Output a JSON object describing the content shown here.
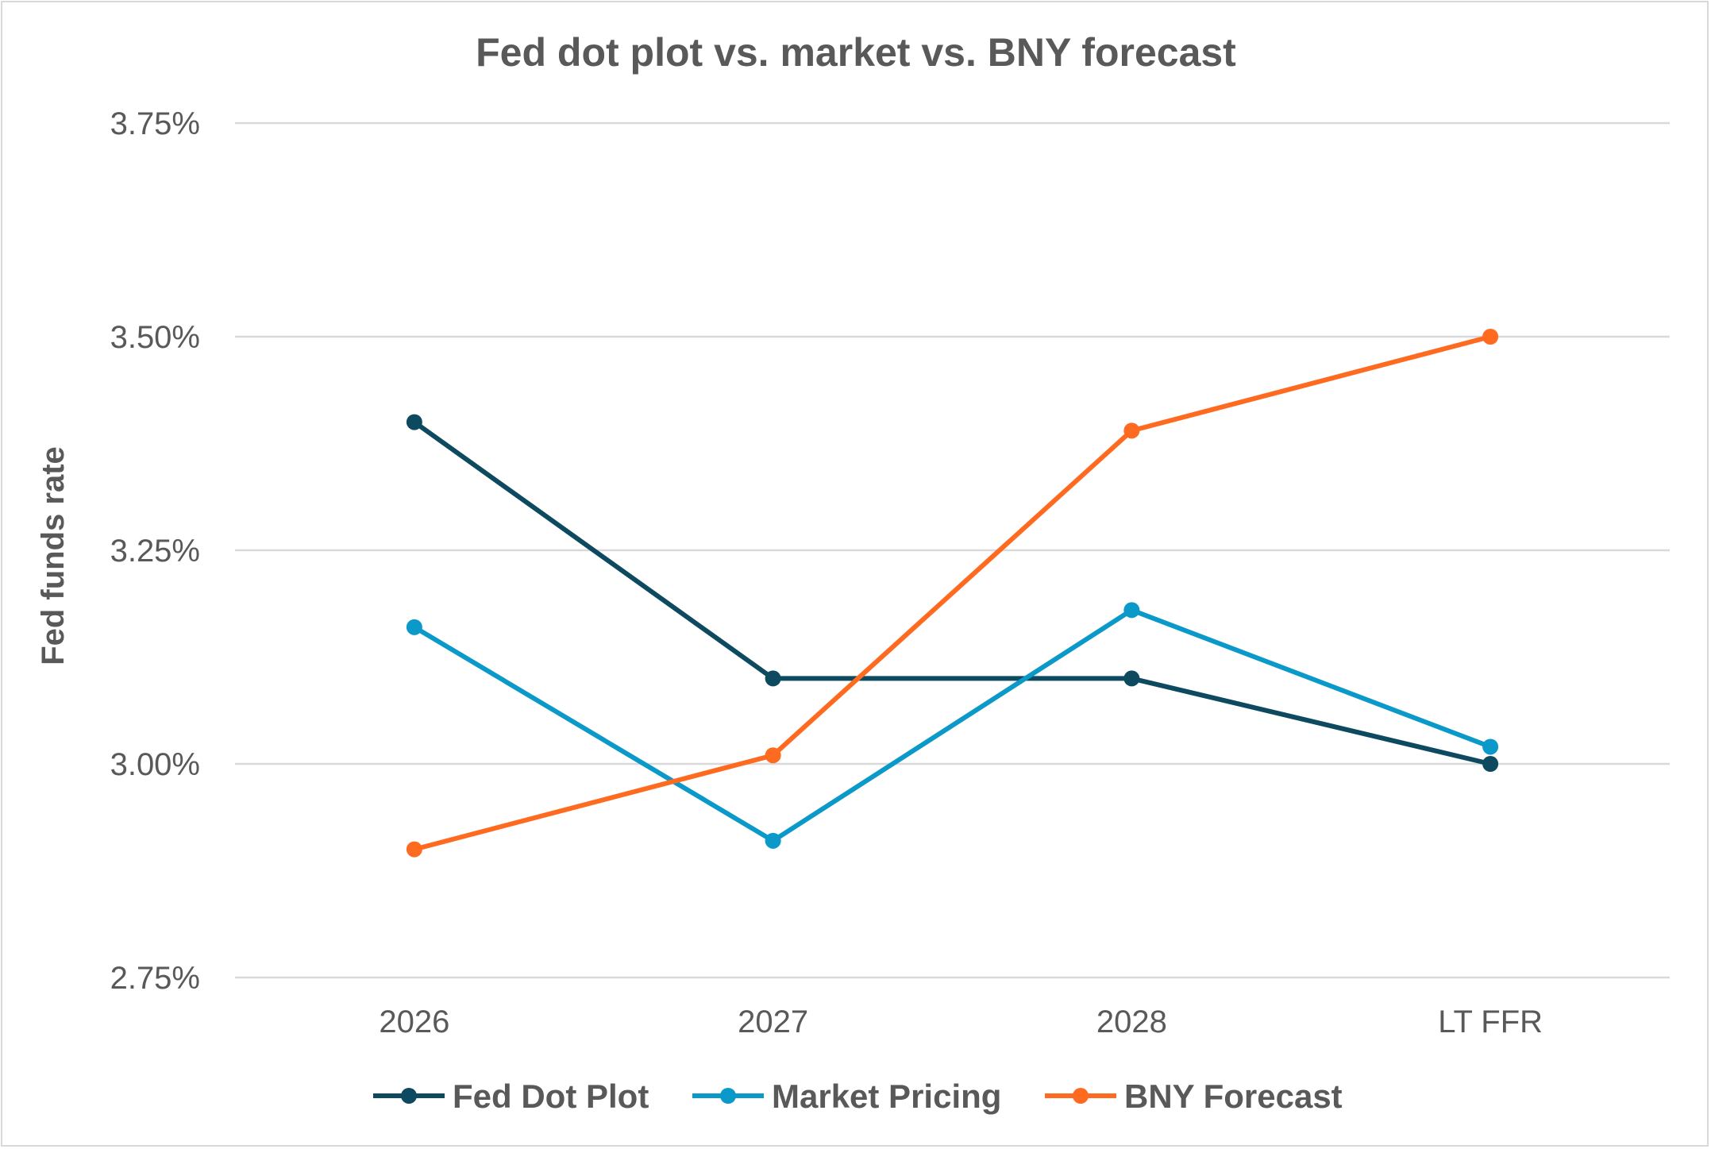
{
  "chart_data": {
    "type": "line",
    "title": "Fed dot plot vs. market vs. BNY forecast",
    "xlabel": "",
    "ylabel": "Fed funds rate",
    "categories": [
      "2026",
      "2027",
      "2028",
      "LT FFR"
    ],
    "ylim": [
      2.75,
      3.75
    ],
    "yticks": [
      2.75,
      3.0,
      3.25,
      3.5,
      3.75
    ],
    "ytick_labels": [
      "2.75%",
      "3.00%",
      "3.25%",
      "3.50%",
      "3.75%"
    ],
    "grid": true,
    "legend_position": "bottom",
    "series": [
      {
        "name": "Fed Dot Plot",
        "color": "#0D4A5F",
        "values": [
          3.4,
          3.1,
          3.1,
          3.0
        ]
      },
      {
        "name": "Market Pricing",
        "color": "#0A99C9",
        "values": [
          3.16,
          2.91,
          3.18,
          3.02
        ]
      },
      {
        "name": "BNY Forecast",
        "color": "#FF6A21",
        "values": [
          2.9,
          3.01,
          3.39,
          3.5
        ]
      }
    ]
  }
}
